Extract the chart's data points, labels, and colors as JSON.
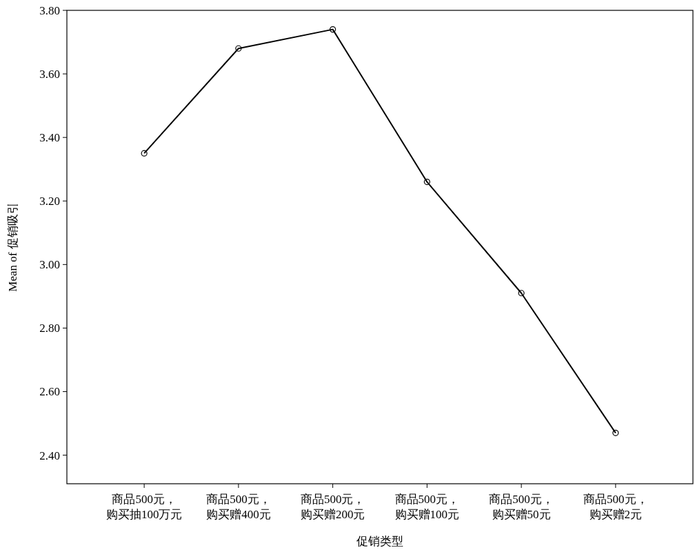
{
  "chart_data": {
    "type": "line",
    "xlabel": "促销类型",
    "ylabel": "Mean of 促销吸引",
    "categories": [
      "商品500元，购买抽100万元",
      "商品500元，购买赠400元",
      "商品500元，购买赠200元",
      "商品500元，购买赠100元",
      "商品500元，购买赠50元",
      "商品500元，购买赠2元"
    ],
    "values": [
      3.35,
      3.68,
      3.74,
      3.26,
      2.91,
      2.47
    ],
    "color": "#000000",
    "ylim": [
      2.31,
      3.8
    ],
    "yticks": [
      {
        "value": 2.4,
        "label": "2.40"
      },
      {
        "value": 2.6,
        "label": "2.60"
      },
      {
        "value": 2.8,
        "label": "2.80"
      },
      {
        "value": 3.0,
        "label": "3.00"
      },
      {
        "value": 3.2,
        "label": "3.20"
      },
      {
        "value": 3.4,
        "label": "3.40"
      },
      {
        "value": 3.6,
        "label": "3.60"
      },
      {
        "value": 3.8,
        "label": "3.80"
      }
    ],
    "marker": "circle",
    "line_style": "solid"
  }
}
